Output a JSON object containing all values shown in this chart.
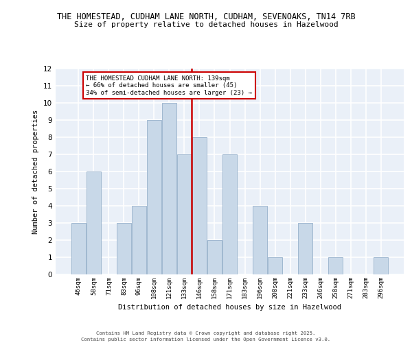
{
  "title_line1": "THE HOMESTEAD, CUDHAM LANE NORTH, CUDHAM, SEVENOAKS, TN14 7RB",
  "title_line2": "Size of property relative to detached houses in Hazelwood",
  "xlabel": "Distribution of detached houses by size in Hazelwood",
  "ylabel": "Number of detached properties",
  "categories": [
    "46sqm",
    "58sqm",
    "71sqm",
    "83sqm",
    "96sqm",
    "108sqm",
    "121sqm",
    "133sqm",
    "146sqm",
    "158sqm",
    "171sqm",
    "183sqm",
    "196sqm",
    "208sqm",
    "221sqm",
    "233sqm",
    "246sqm",
    "258sqm",
    "271sqm",
    "283sqm",
    "296sqm"
  ],
  "values": [
    3,
    6,
    0,
    3,
    4,
    9,
    10,
    7,
    8,
    2,
    7,
    0,
    4,
    1,
    0,
    3,
    0,
    1,
    0,
    0,
    1
  ],
  "bar_color": "#c8d8e8",
  "bar_edge_color": "#a0b8d0",
  "vline_color": "#cc0000",
  "annotation_text": "THE HOMESTEAD CUDHAM LANE NORTH: 139sqm\n← 66% of detached houses are smaller (45)\n34% of semi-detached houses are larger (23) →",
  "annotation_box_color": "#ffffff",
  "annotation_box_edge": "#cc0000",
  "ylim": [
    0,
    12
  ],
  "yticks": [
    0,
    1,
    2,
    3,
    4,
    5,
    6,
    7,
    8,
    9,
    10,
    11,
    12
  ],
  "bg_color": "#eaf0f8",
  "footer_line1": "Contains HM Land Registry data © Crown copyright and database right 2025.",
  "footer_line2": "Contains public sector information licensed under the Open Government Licence v3.0."
}
